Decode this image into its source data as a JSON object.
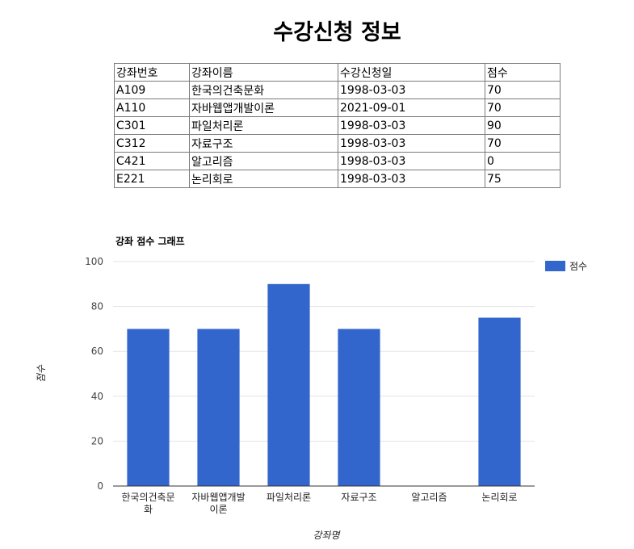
{
  "page": {
    "title": "수강신청 정보"
  },
  "table": {
    "headers": [
      "강좌번호",
      "강좌이름",
      "수강신청일",
      "점수"
    ],
    "rows": [
      [
        "A109",
        "한국의건축문화",
        "1998-03-03",
        "70"
      ],
      [
        "A110",
        "자바웹앱개발이론",
        "2021-09-01",
        "70"
      ],
      [
        "C301",
        "파일처리론",
        "1998-03-03",
        "90"
      ],
      [
        "C312",
        "자료구조",
        "1998-03-03",
        "70"
      ],
      [
        "C421",
        "알고리즘",
        "1998-03-03",
        "0"
      ],
      [
        "E221",
        "논리회로",
        "1998-03-03",
        "75"
      ]
    ]
  },
  "chart_data": {
    "type": "bar",
    "title": "강좌 점수 그래프",
    "xlabel": "강좌명",
    "ylabel": "점수",
    "categories": [
      [
        "한국의건축문",
        "화"
      ],
      [
        "자바웹앱개발",
        "이론"
      ],
      [
        "파일처리론"
      ],
      [
        "자료구조"
      ],
      [
        "알고리즘"
      ],
      [
        "논리회로"
      ]
    ],
    "series": [
      {
        "name": "점수",
        "values": [
          70,
          70,
          90,
          70,
          0,
          75
        ],
        "color": "#3366cc"
      }
    ],
    "ylim": [
      0,
      100
    ],
    "yticks": [
      0,
      20,
      40,
      60,
      80,
      100
    ],
    "grid": true,
    "legend": "right"
  }
}
